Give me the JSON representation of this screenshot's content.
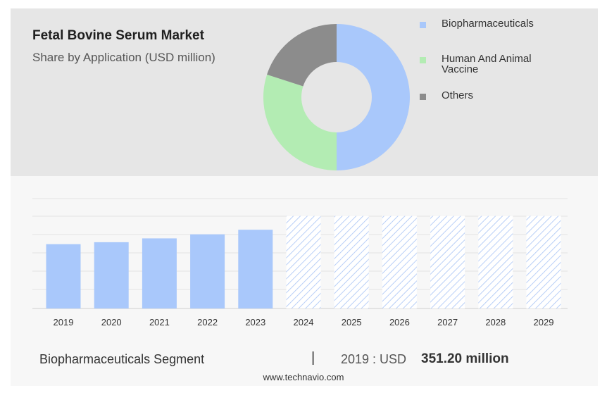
{
  "chart_data": [
    {
      "type": "pie",
      "title": "Fetal Bovine Serum Market",
      "subtitle": "Share by Application (USD million)",
      "donut": true,
      "slices": [
        {
          "label": "Biopharmaceuticals",
          "value": 50,
          "color": "#a9c8fb"
        },
        {
          "label": "Human And Animal Vaccine",
          "value": 30,
          "color": "#b3ecb3"
        },
        {
          "label": "Others",
          "value": 20,
          "color": "#8c8c8c"
        }
      ],
      "legend": "right"
    },
    {
      "type": "bar",
      "categories": [
        "2019",
        "2020",
        "2021",
        "2022",
        "2023",
        "2024",
        "2025",
        "2026",
        "2027",
        "2028",
        "2029"
      ],
      "series": [
        {
          "values": [
            351.2,
            362,
            383,
            405,
            430,
            505,
            505,
            505,
            505,
            505,
            505
          ]
        }
      ],
      "forecast_from": "2024",
      "actual_color": "#a9c8fb",
      "forecast_pattern": "diagonal-hatch",
      "ylim": [
        0,
        600
      ],
      "grid": true
    }
  ],
  "footer": {
    "segment": "Biopharmaceuticals Segment",
    "separator": "|",
    "year_label": "2019 : USD",
    "value": "351.20 million"
  },
  "source": "www.technavio.com"
}
